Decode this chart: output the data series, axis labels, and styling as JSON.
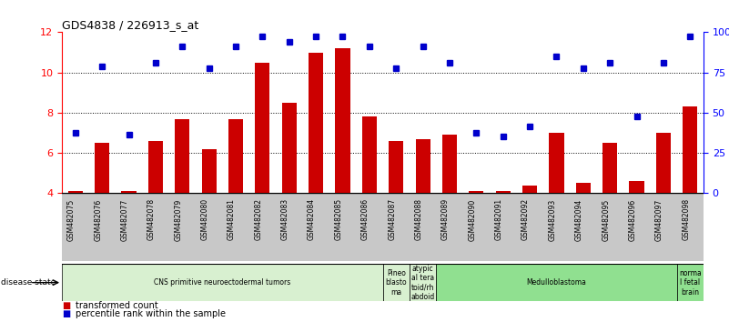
{
  "title": "GDS4838 / 226913_s_at",
  "samples": [
    "GSM482075",
    "GSM482076",
    "GSM482077",
    "GSM482078",
    "GSM482079",
    "GSM482080",
    "GSM482081",
    "GSM482082",
    "GSM482083",
    "GSM482084",
    "GSM482085",
    "GSM482086",
    "GSM482087",
    "GSM482088",
    "GSM482089",
    "GSM482090",
    "GSM482091",
    "GSM482092",
    "GSM482093",
    "GSM482094",
    "GSM482095",
    "GSM482096",
    "GSM482097",
    "GSM482098"
  ],
  "bar_values": [
    4.1,
    6.5,
    4.1,
    6.6,
    7.7,
    6.2,
    7.7,
    10.5,
    8.5,
    11.0,
    11.2,
    7.8,
    6.6,
    6.7,
    6.9,
    4.1,
    4.1,
    4.4,
    7.0,
    4.5,
    6.5,
    4.6,
    7.0,
    8.3
  ],
  "dot_values": [
    7.0,
    10.3,
    6.9,
    10.5,
    11.3,
    10.2,
    11.3,
    11.8,
    11.5,
    11.8,
    11.8,
    11.3,
    10.2,
    11.3,
    10.5,
    7.0,
    6.8,
    7.3,
    10.8,
    10.2,
    10.5,
    7.8,
    10.5,
    11.8
  ],
  "bar_color": "#cc0000",
  "dot_color": "#0000cc",
  "ylim_left": [
    4,
    12
  ],
  "yticks_left": [
    4,
    6,
    8,
    10,
    12
  ],
  "ylim_right": [
    0,
    100
  ],
  "yticks_right": [
    0,
    25,
    50,
    75,
    100
  ],
  "ytick_right_labels": [
    "0",
    "25",
    "50",
    "75",
    "100%"
  ],
  "bg_color": "#ffffff",
  "tick_bg": "#c8c8c8",
  "groups": [
    {
      "label": "CNS primitive neuroectodermal tumors",
      "start": 0,
      "end": 12,
      "color": "#d8f0d0"
    },
    {
      "label": "Pineo\nblasto\nma",
      "start": 12,
      "end": 13,
      "color": "#d8f0d0"
    },
    {
      "label": "atypic\nal tera\ntoid/rh\nabdoid",
      "start": 13,
      "end": 14,
      "color": "#d8f0d0"
    },
    {
      "label": "Medulloblastoma",
      "start": 14,
      "end": 23,
      "color": "#90e090"
    },
    {
      "label": "norma\nl fetal\nbrain",
      "start": 23,
      "end": 24,
      "color": "#90e090"
    }
  ],
  "legend_items": [
    {
      "label": "transformed count",
      "color": "#cc0000"
    },
    {
      "label": "percentile rank within the sample",
      "color": "#0000cc"
    }
  ],
  "disease_state_label": "disease state"
}
